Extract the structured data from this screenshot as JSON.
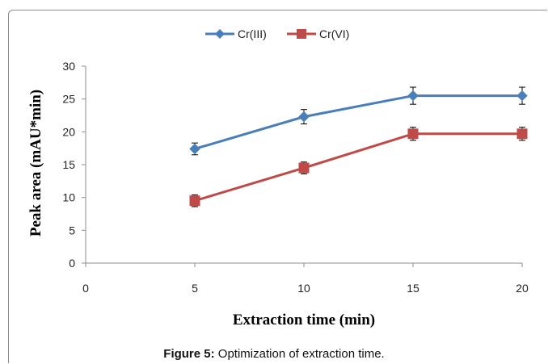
{
  "chart_data": {
    "type": "line",
    "xlabel": "Extraction time (min)",
    "ylabel": "Peak area (mAU*min)",
    "xlim": [
      0,
      20
    ],
    "ylim": [
      0,
      30
    ],
    "xticks": [
      0,
      5,
      10,
      15,
      20
    ],
    "yticks": [
      0,
      5,
      10,
      15,
      20,
      25,
      30
    ],
    "grid": false,
    "legend": "top-center",
    "x": [
      5,
      10,
      15,
      20
    ],
    "series": [
      {
        "name": "Cr(III)",
        "values": [
          17.4,
          22.3,
          25.5,
          25.5
        ],
        "errors": [
          0.9,
          1.1,
          1.3,
          1.3
        ],
        "color": "#4a7ebb",
        "marker": "diamond"
      },
      {
        "name": "Cr(VI)",
        "values": [
          9.5,
          14.5,
          19.7,
          19.7
        ],
        "errors": [
          0.9,
          0.9,
          1.0,
          1.0
        ],
        "color": "#be4b48",
        "marker": "square"
      }
    ]
  },
  "caption": {
    "label": "Figure 5:",
    "text": " Optimization of extraction time."
  }
}
